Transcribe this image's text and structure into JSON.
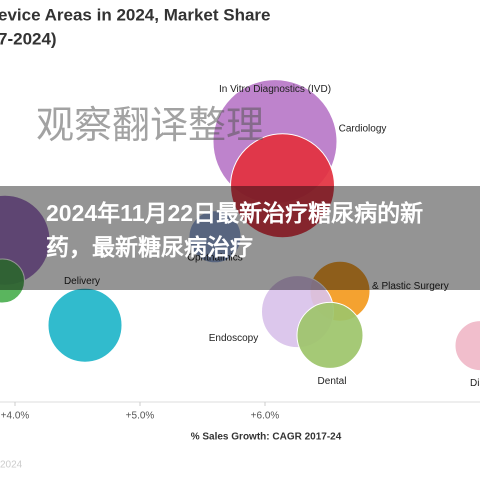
{
  "chart_data": {
    "type": "bubble",
    "title": "evice Areas in 2024, Market Share",
    "subtitle": "7-2024)",
    "x_label": "% Sales Growth: CAGR 2017-24",
    "xlim": [
      3.88,
      7.72
    ],
    "xticks": [
      {
        "value": 4,
        "label": "+4.0%"
      },
      {
        "value": 5,
        "label": "+5.0%"
      },
      {
        "value": 6,
        "label": "+6.0%"
      }
    ],
    "ylim": [
      0,
      100
    ],
    "points": [
      {
        "label": "In Vitro Diagnostics (IVD)",
        "x": 6.08,
        "y": 76,
        "size": 62,
        "color": "#b978c8"
      },
      {
        "label": "Cardiology",
        "x": 6.14,
        "y": 63,
        "size": 52,
        "color": "#e3313f"
      },
      {
        "label": "Ophthalmics",
        "x": 5.6,
        "y": 48,
        "size": 26,
        "color": "#8fa8d8"
      },
      {
        "label": "& Plastic Surgery",
        "x": 6.6,
        "y": 32,
        "size": 30,
        "color": "#f39a1e"
      },
      {
        "label": "Endoscopy",
        "x": 6.26,
        "y": 26,
        "size": 36,
        "color": "#d9c2ea"
      },
      {
        "label": "Dental",
        "x": 6.52,
        "y": 19,
        "size": 33,
        "color": "#9dc46a"
      },
      {
        "label": "Delivery",
        "x": 4.56,
        "y": 22,
        "size": 37,
        "color": "#1fb5c9"
      },
      {
        "label": null,
        "x": 3.92,
        "y": 47,
        "size": 45,
        "color": "#9b6cc0"
      },
      {
        "label": null,
        "x": 3.9,
        "y": 35,
        "size": 22,
        "color": "#4caf50"
      },
      {
        "label": "Dia",
        "x": 7.72,
        "y": 16,
        "size": 25,
        "color": "#f0b8c8"
      }
    ]
  },
  "overlay": {
    "watermark": "观察翻译整理",
    "banner": "2024年11月22日最新治疗糖尿病的新药，最新糖尿病治疗"
  },
  "footer": "2024"
}
